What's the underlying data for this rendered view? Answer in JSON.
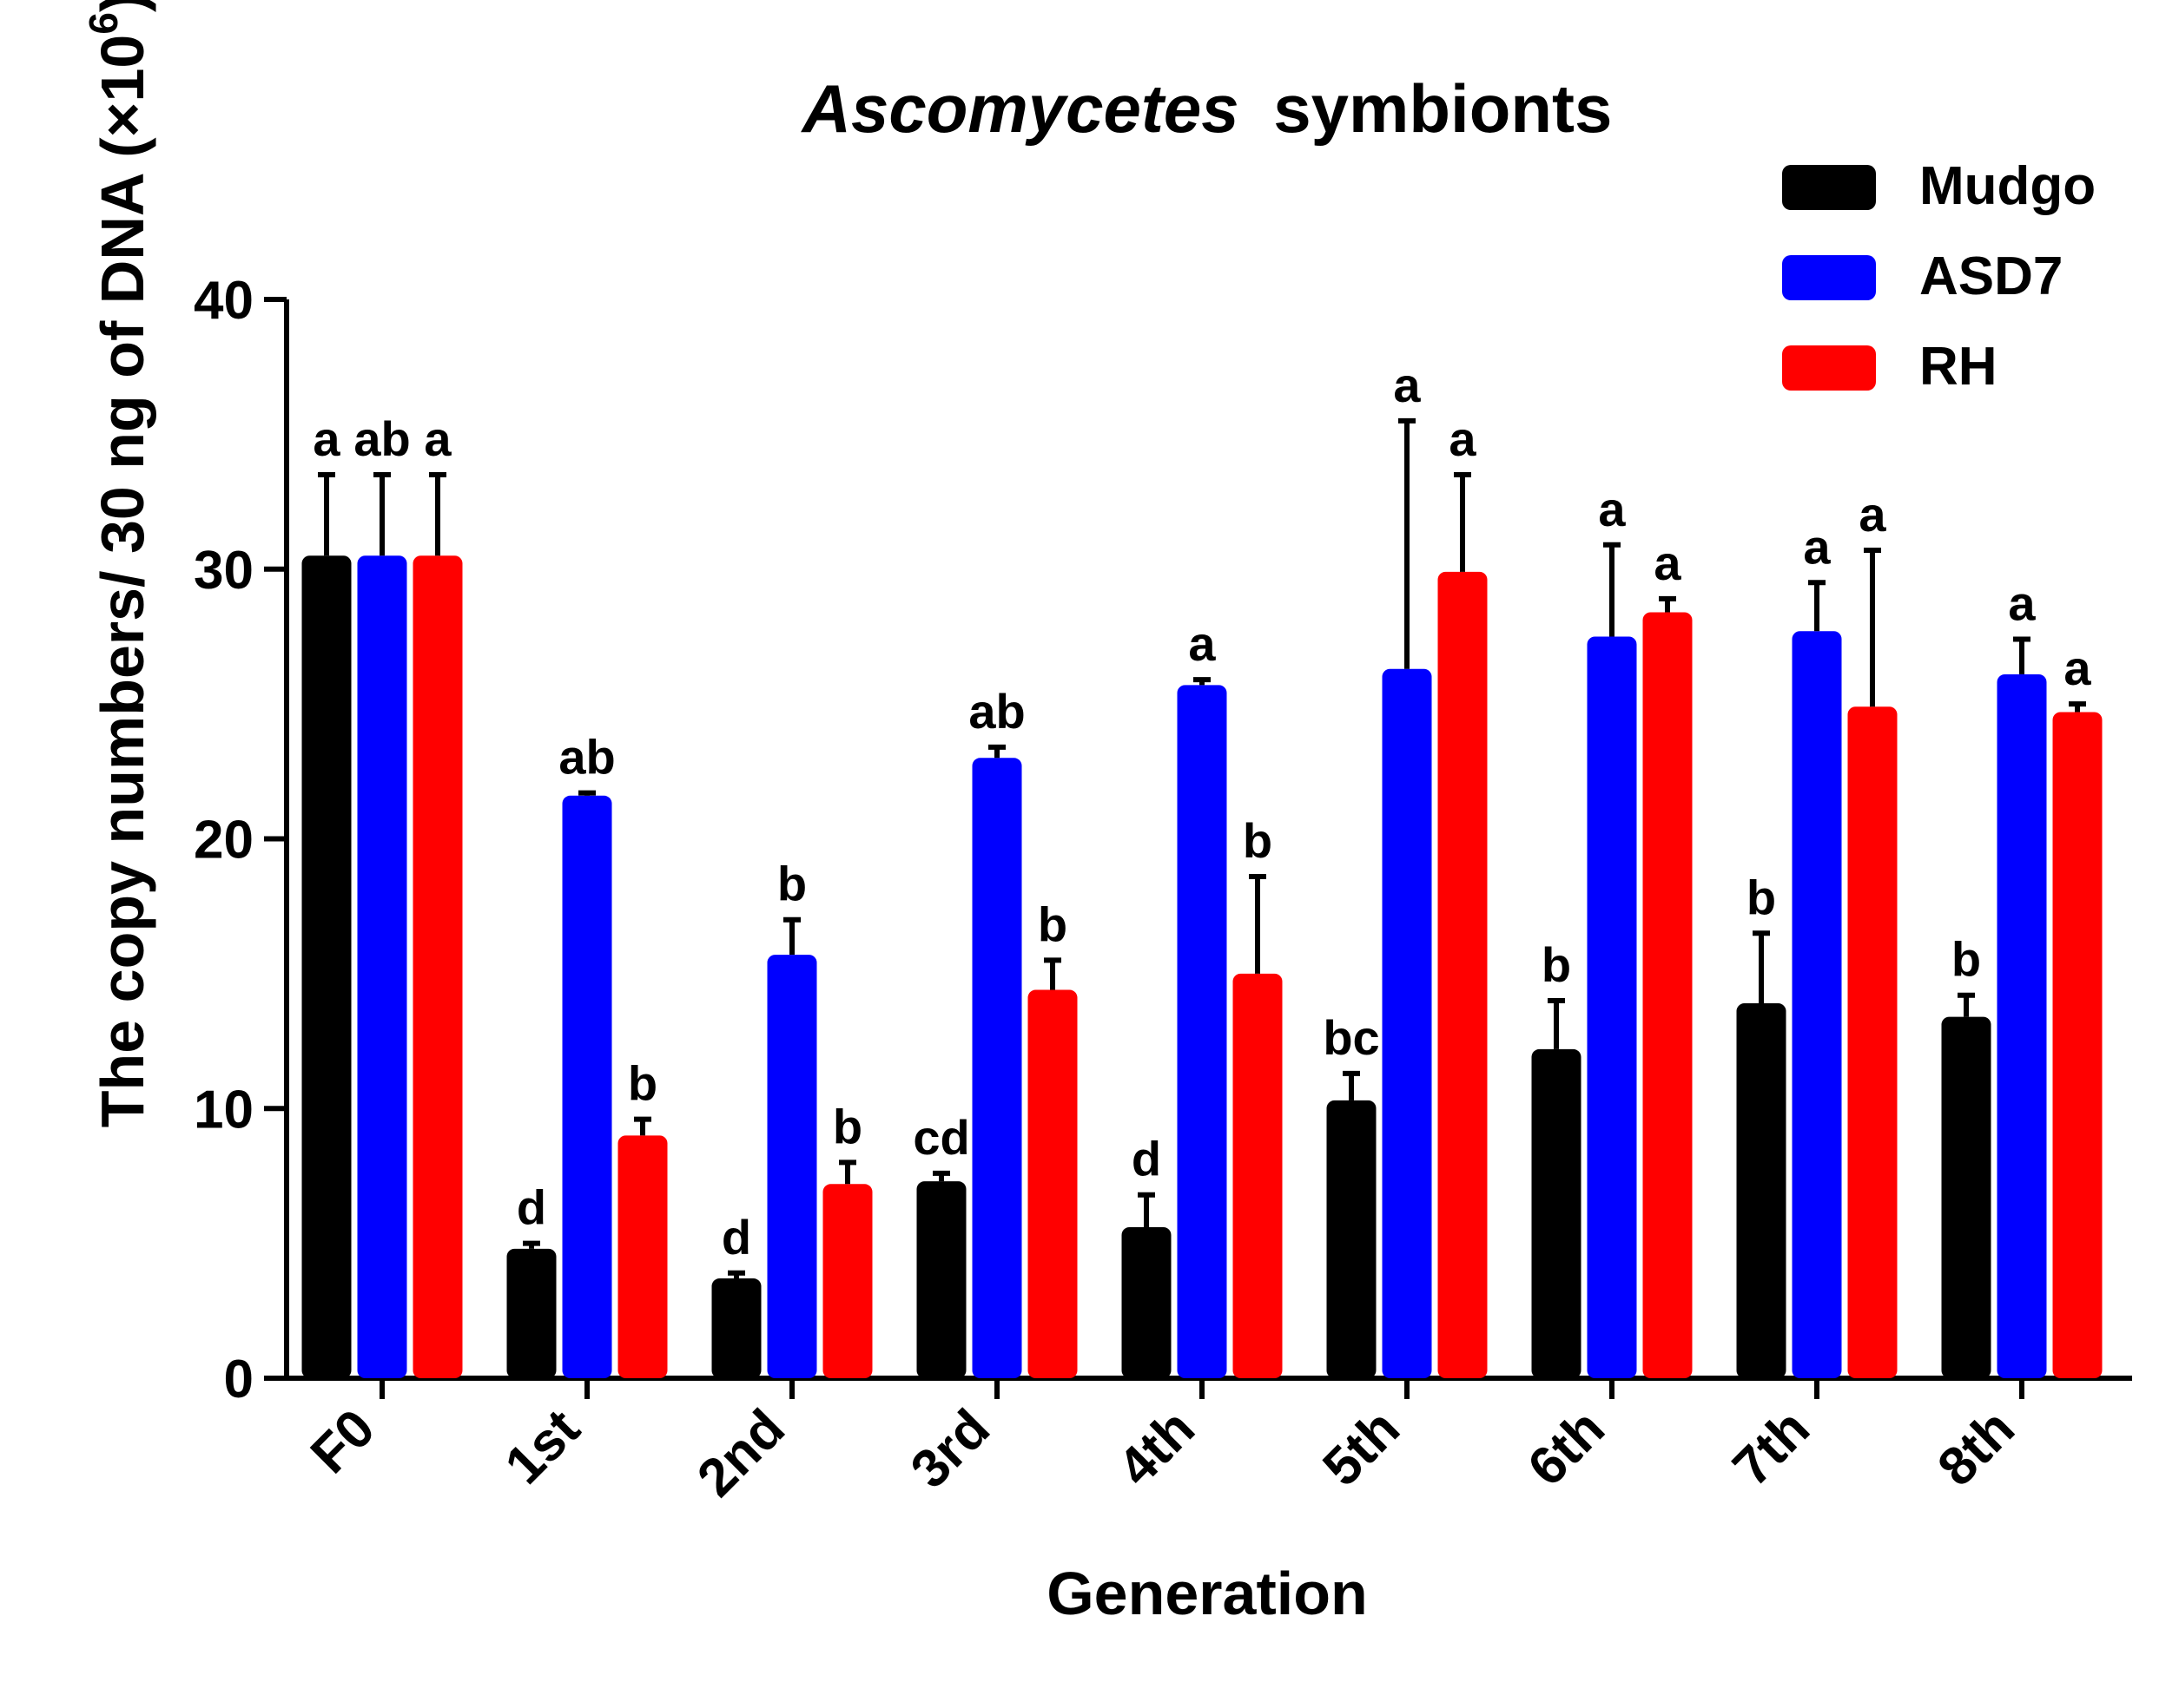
{
  "chart_data": {
    "type": "bar",
    "title_italic": "Ascomycetes",
    "title_rest": "symbionts",
    "xlabel": "Generation",
    "ylabel_main": "The copy numbers/ 30 ng of DNA (×10",
    "ylabel_sup": "6",
    "ylabel_close": ")",
    "ylim": [
      0,
      40
    ],
    "yticks": [
      "0",
      "10",
      "20",
      "30",
      "40"
    ],
    "categories": [
      "F0",
      "1st",
      "2nd",
      "3rd",
      "4th",
      "5th",
      "6th",
      "7th",
      "8th"
    ],
    "legend_position": "top-right",
    "series": [
      {
        "name": "Mudgo",
        "color": "#000000",
        "values": [
          30.5,
          4.8,
          3.7,
          7.3,
          5.6,
          10.3,
          12.2,
          13.9,
          13.4
        ],
        "errors": [
          3.0,
          0.2,
          0.2,
          0.3,
          1.2,
          1.0,
          1.8,
          2.6,
          0.8
        ],
        "letters": [
          "a",
          "d",
          "d",
          "cd",
          "d",
          "bc",
          "b",
          "b",
          "b"
        ]
      },
      {
        "name": "ASD7",
        "color": "#0000ff",
        "values": [
          30.5,
          21.6,
          15.7,
          23.0,
          25.7,
          26.3,
          27.5,
          27.7,
          26.1
        ],
        "errors": [
          3.0,
          0.1,
          1.3,
          0.4,
          0.2,
          9.2,
          3.4,
          1.8,
          1.3
        ],
        "letters": [
          "ab",
          "ab",
          "b",
          "ab",
          "a",
          "a",
          "a",
          "a",
          "a"
        ]
      },
      {
        "name": "RH",
        "color": "#ff0000",
        "values": [
          30.5,
          9.0,
          7.2,
          14.4,
          15.0,
          29.9,
          28.4,
          24.9,
          24.7
        ],
        "errors": [
          3.0,
          0.6,
          0.8,
          1.1,
          3.6,
          3.6,
          0.5,
          5.8,
          0.3
        ],
        "letters": [
          "a",
          "b",
          "b",
          "b",
          "b",
          "a",
          "a",
          "a",
          "a"
        ]
      }
    ]
  }
}
